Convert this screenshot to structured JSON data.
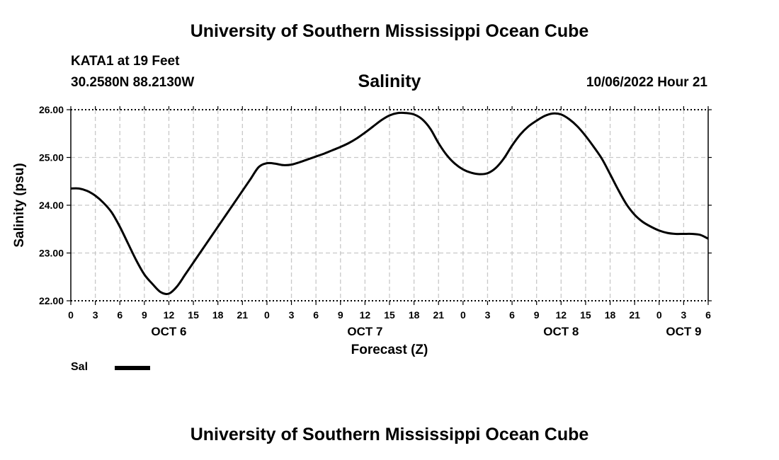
{
  "header": {
    "title": "University of Southern Mississippi Ocean Cube",
    "station": "KATA1 at 19 Feet",
    "coordinates": "30.2580N  88.2130W",
    "timestamp": "10/06/2022 Hour 21"
  },
  "footer": {
    "title": "University of Southern Mississippi Ocean Cube"
  },
  "legend": {
    "series_label": "Sal",
    "swatch_color": "#000000"
  },
  "chart_data": {
    "type": "line",
    "title": "Salinity",
    "xlabel": "Forecast (Z)",
    "ylabel": "Salinity (psu)",
    "xlim": [
      0,
      78
    ],
    "ylim": [
      22.0,
      26.0
    ],
    "grid": true,
    "x_tick_labels": [
      "0",
      "3",
      "6",
      "9",
      "12",
      "15",
      "18",
      "21",
      "0",
      "3",
      "6",
      "9",
      "12",
      "15",
      "18",
      "21",
      "0",
      "3",
      "6",
      "9",
      "12",
      "15",
      "18",
      "21",
      "0",
      "3",
      "6"
    ],
    "y_tick_labels": [
      "26.00",
      "25.00",
      "24.00",
      "23.00",
      "22.00"
    ],
    "y_ticks": [
      26,
      25,
      24,
      23,
      22
    ],
    "date_labels": [
      {
        "label": "OCT 6",
        "x": 12
      },
      {
        "label": "OCT 7",
        "x": 36
      },
      {
        "label": "OCT 8",
        "x": 60
      },
      {
        "label": "OCT 9",
        "x": 75
      }
    ],
    "series": [
      {
        "name": "Sal",
        "color": "#000000",
        "x": [
          0,
          1,
          2,
          3,
          4,
          5,
          6,
          7,
          8,
          9,
          10,
          11,
          12,
          13,
          14,
          15,
          16,
          17,
          18,
          19,
          20,
          21,
          22,
          23,
          24,
          25,
          26,
          27,
          28,
          29,
          30,
          31,
          32,
          33,
          34,
          35,
          36,
          37,
          38,
          39,
          40,
          41,
          42,
          43,
          44,
          45,
          46,
          47,
          48,
          49,
          50,
          51,
          52,
          53,
          54,
          55,
          56,
          57,
          58,
          59,
          60,
          61,
          62,
          63,
          64,
          65,
          66,
          67,
          68,
          69,
          70,
          71,
          72,
          73,
          74,
          75,
          76,
          77,
          78
        ],
        "values": [
          24.35,
          24.35,
          24.3,
          24.2,
          24.05,
          23.85,
          23.55,
          23.2,
          22.85,
          22.55,
          22.35,
          22.18,
          22.15,
          22.3,
          22.55,
          22.8,
          23.05,
          23.3,
          23.55,
          23.8,
          24.05,
          24.3,
          24.55,
          24.8,
          24.88,
          24.87,
          24.84,
          24.85,
          24.9,
          24.96,
          25.02,
          25.08,
          25.15,
          25.22,
          25.3,
          25.4,
          25.52,
          25.65,
          25.78,
          25.88,
          25.93,
          25.93,
          25.9,
          25.8,
          25.6,
          25.3,
          25.05,
          24.87,
          24.75,
          24.68,
          24.65,
          24.67,
          24.78,
          24.98,
          25.25,
          25.48,
          25.65,
          25.77,
          25.87,
          25.92,
          25.9,
          25.8,
          25.65,
          25.45,
          25.22,
          24.97,
          24.65,
          24.32,
          24.02,
          23.8,
          23.65,
          23.55,
          23.47,
          23.42,
          23.4,
          23.4,
          23.4,
          23.38,
          23.3
        ]
      }
    ]
  }
}
